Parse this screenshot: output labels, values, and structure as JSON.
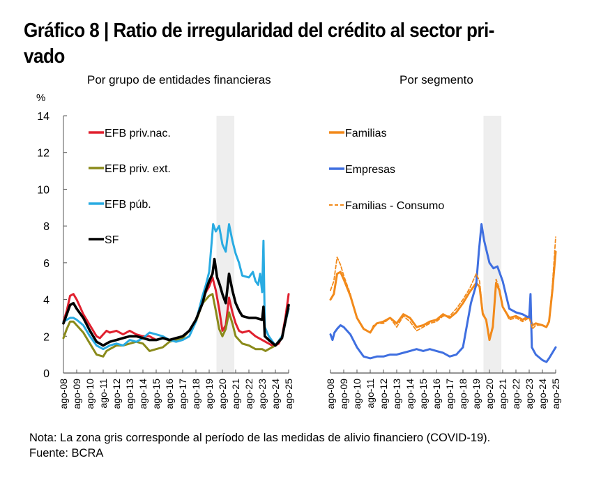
{
  "title": "Gráfico 8 | Ratio de irregularidad del crédito al sector pri-vado",
  "title_line1": "Gráfico 8 | Ratio de irregularidad del crédito al sector pri-",
  "title_line2": "vado",
  "note": "Nota: La zona gris corresponde al período de las medidas de alivio financiero (COVID-19).",
  "source": "Fuente: BCRA",
  "chart_data": [
    {
      "type": "line",
      "title": "Por grupo de entidades financieras",
      "ylabel": "%",
      "xlabel": "",
      "ylim": [
        0,
        14
      ],
      "yticks": [
        0,
        2,
        4,
        6,
        8,
        10,
        12,
        14
      ],
      "xticks": [
        "ago-08",
        "ago-09",
        "ago-10",
        "ago-11",
        "ago-12",
        "ago-13",
        "ago-14",
        "ago-15",
        "ago-16",
        "ago-17",
        "ago-18",
        "ago-19",
        "ago-20",
        "ago-21",
        "ago-22",
        "ago-23",
        "ago-24",
        "ago-25"
      ],
      "shaded_region": {
        "from": "mar-20",
        "to": "abr-21",
        "x_years": [
          11.55,
          12.9
        ],
        "label": "Medidas de alivio financiero (COVID-19)"
      },
      "legend": "top-left",
      "x_unit": "years since ago-08",
      "series": [
        {
          "name": "EFB priv.nac.",
          "color": "#e0202e",
          "dash": false,
          "x": [
            0,
            0.25,
            0.5,
            0.75,
            1,
            1.25,
            1.5,
            2,
            2.5,
            2.75,
            3,
            3.25,
            3.5,
            4,
            4.5,
            5,
            5.5,
            6,
            6.5,
            7,
            7.5,
            8,
            8.5,
            9,
            9.5,
            10,
            10.5,
            10.75,
            11,
            11.25,
            11.5,
            11.75,
            12,
            12.25,
            12.5,
            12.75,
            13,
            13.25,
            13.5,
            14,
            14.5,
            15,
            15.5,
            15.75,
            16,
            16.25,
            16.5,
            16.75,
            17
          ],
          "y": [
            2.8,
            3.4,
            4.2,
            4.3,
            4.0,
            3.6,
            3.2,
            2.6,
            2.0,
            1.9,
            2.1,
            2.3,
            2.2,
            2.3,
            2.1,
            2.3,
            2.1,
            2.0,
            2.0,
            1.8,
            1.9,
            1.8,
            1.9,
            1.9,
            2.3,
            2.8,
            3.9,
            4.4,
            4.7,
            5.2,
            4.5,
            3.5,
            2.3,
            2.6,
            4.1,
            3.3,
            2.7,
            2.3,
            2.2,
            2.3,
            2.0,
            1.8,
            1.6,
            1.5,
            1.5,
            1.6,
            2.0,
            3.0,
            4.3
          ]
        },
        {
          "name": "EFB priv. ext.",
          "color": "#8a8a1a",
          "dash": false,
          "x": [
            0,
            0.25,
            0.5,
            0.75,
            1,
            1.5,
            2,
            2.5,
            3,
            3.25,
            3.5,
            4,
            4.5,
            5,
            5.5,
            6,
            6.5,
            7,
            7.5,
            8,
            8.5,
            9,
            9.5,
            10,
            10.5,
            10.75,
            11,
            11.25,
            11.5,
            11.75,
            12,
            12.25,
            12.5,
            12.75,
            13,
            13.5,
            14,
            14.5,
            15,
            15.25,
            15.5,
            15.75,
            16,
            16.5,
            17
          ],
          "y": [
            1.9,
            2.4,
            2.8,
            2.8,
            2.6,
            2.2,
            1.6,
            1.0,
            0.9,
            1.2,
            1.3,
            1.5,
            1.5,
            1.6,
            1.7,
            1.6,
            1.2,
            1.3,
            1.4,
            1.7,
            1.8,
            1.9,
            2.3,
            2.8,
            3.8,
            4.0,
            4.2,
            4.3,
            3.4,
            2.4,
            2.0,
            2.4,
            3.3,
            2.7,
            2.0,
            1.6,
            1.5,
            1.3,
            1.3,
            1.2,
            1.3,
            1.4,
            1.5,
            2.0,
            3.5
          ]
        },
        {
          "name": "EFB púb.",
          "color": "#29abe2",
          "dash": false,
          "x": [
            0,
            0.25,
            0.5,
            0.75,
            1,
            1.5,
            2,
            2.5,
            3,
            3.25,
            3.5,
            4,
            4.5,
            5,
            5.5,
            6,
            6.5,
            7,
            7.5,
            8,
            8.5,
            9,
            9.5,
            10,
            10.5,
            10.75,
            11,
            11.15,
            11.3,
            11.5,
            11.75,
            12,
            12.25,
            12.5,
            12.75,
            13,
            13.25,
            13.5,
            14,
            14.3,
            14.5,
            14.7,
            14.85,
            15,
            15.1,
            15.2,
            15.5,
            16,
            16.5,
            17
          ],
          "y": [
            2.8,
            2.9,
            3.0,
            3.0,
            2.9,
            2.6,
            2.0,
            1.5,
            1.3,
            1.4,
            1.5,
            1.6,
            1.5,
            1.8,
            1.7,
            1.9,
            2.2,
            2.1,
            2.0,
            1.8,
            1.7,
            1.8,
            2.0,
            2.8,
            4.2,
            4.8,
            5.5,
            6.8,
            8.1,
            7.7,
            8.0,
            7.0,
            6.6,
            8.1,
            7.2,
            6.5,
            6.0,
            5.3,
            5.2,
            5.5,
            5.0,
            4.8,
            5.4,
            4.4,
            7.2,
            2.5,
            2.0,
            1.5,
            2.0,
            3.5
          ]
        },
        {
          "name": "SF",
          "color": "#000000",
          "dash": false,
          "x": [
            0,
            0.25,
            0.5,
            0.75,
            1,
            1.5,
            2,
            2.5,
            3,
            3.25,
            3.5,
            4,
            4.5,
            5,
            5.5,
            6,
            6.5,
            7,
            7.5,
            8,
            8.5,
            9,
            9.5,
            10,
            10.5,
            10.75,
            11,
            11.25,
            11.4,
            11.6,
            11.8,
            12,
            12.25,
            12.5,
            12.75,
            13,
            13.25,
            13.5,
            14,
            14.5,
            15,
            15.1,
            15.2,
            15.5,
            16,
            16.5,
            17
          ],
          "y": [
            2.7,
            3.2,
            3.7,
            3.8,
            3.5,
            3.0,
            2.3,
            1.7,
            1.5,
            1.6,
            1.7,
            1.8,
            1.9,
            2.0,
            2.0,
            1.9,
            1.8,
            1.8,
            1.9,
            1.8,
            1.9,
            2.0,
            2.3,
            2.9,
            3.8,
            4.5,
            5.0,
            5.4,
            6.2,
            5.2,
            4.8,
            4.3,
            3.8,
            5.4,
            4.5,
            3.8,
            3.4,
            3.1,
            3.0,
            3.0,
            2.9,
            3.6,
            2.0,
            1.8,
            1.5,
            1.9,
            3.7
          ]
        }
      ]
    },
    {
      "type": "line",
      "title": "Por segmento",
      "ylabel": "%",
      "xlabel": "",
      "ylim": [
        0,
        14
      ],
      "xticks": [
        "ago-08",
        "ago-09",
        "ago-10",
        "ago-11",
        "ago-12",
        "ago-13",
        "ago-14",
        "ago-15",
        "ago-16",
        "ago-17",
        "ago-18",
        "ago-19",
        "ago-20",
        "ago-21",
        "ago-22",
        "ago-23",
        "ago-24",
        "ago-25"
      ],
      "shaded_region": {
        "from": "mar-20",
        "to": "abr-21",
        "x_years": [
          11.55,
          12.9
        ],
        "label": "Medidas de alivio financiero (COVID-19)"
      },
      "legend": "top-left",
      "x_unit": "years since ago-08",
      "series": [
        {
          "name": "Familias",
          "color": "#f28a1b",
          "dash": false,
          "x": [
            0,
            0.25,
            0.5,
            0.75,
            1,
            1.5,
            2,
            2.5,
            3,
            3.25,
            3.5,
            4,
            4.5,
            5,
            5.5,
            6,
            6.5,
            7,
            7.5,
            8,
            8.5,
            9,
            9.5,
            10,
            10.5,
            11,
            11.25,
            11.5,
            11.75,
            12,
            12.25,
            12.5,
            12.75,
            13,
            13.5,
            14,
            14.5,
            15,
            15.25,
            15.5,
            16,
            16.3,
            16.5,
            16.75,
            17
          ],
          "y": [
            4.0,
            4.3,
            5.4,
            5.5,
            5.1,
            4.2,
            3.0,
            2.4,
            2.2,
            2.5,
            2.7,
            2.8,
            3.0,
            2.7,
            3.2,
            3.0,
            2.5,
            2.6,
            2.8,
            2.9,
            3.2,
            3.0,
            3.3,
            3.8,
            4.4,
            4.9,
            4.7,
            3.2,
            2.9,
            1.8,
            2.5,
            4.9,
            4.5,
            3.6,
            3.0,
            3.1,
            2.9,
            3.1,
            2.6,
            2.7,
            2.6,
            2.5,
            2.8,
            4.5,
            6.6
          ]
        },
        {
          "name": "Empresas",
          "color": "#3f6fe0",
          "dash": false,
          "x": [
            0,
            0.15,
            0.3,
            0.5,
            0.75,
            1,
            1.5,
            2,
            2.5,
            3,
            3.5,
            4,
            4.5,
            5,
            5.5,
            6,
            6.5,
            7,
            7.5,
            8,
            8.5,
            9,
            9.5,
            10,
            10.3,
            10.6,
            11,
            11.2,
            11.4,
            11.6,
            11.8,
            12,
            12.3,
            12.6,
            13,
            13.5,
            14,
            14.5,
            15,
            15.1,
            15.2,
            15.5,
            16,
            16.3,
            16.5,
            17
          ],
          "y": [
            2.1,
            1.8,
            2.2,
            2.4,
            2.6,
            2.5,
            2.1,
            1.4,
            0.9,
            0.8,
            0.9,
            0.9,
            1.0,
            1.0,
            1.1,
            1.2,
            1.3,
            1.2,
            1.3,
            1.2,
            1.1,
            0.9,
            1.0,
            1.4,
            2.6,
            3.8,
            4.8,
            6.6,
            8.1,
            7.2,
            6.6,
            6.0,
            5.7,
            5.8,
            5.0,
            3.5,
            3.3,
            3.2,
            3.0,
            4.3,
            1.4,
            1.0,
            0.7,
            0.6,
            0.8,
            1.4
          ]
        },
        {
          "name": "Familias - Consumo",
          "color": "#f28a1b",
          "dash": true,
          "x": [
            0,
            0.25,
            0.5,
            0.75,
            1,
            1.5,
            2,
            2.5,
            3,
            3.25,
            3.5,
            4,
            4.5,
            5,
            5.5,
            6,
            6.5,
            7,
            7.5,
            8,
            8.5,
            9,
            9.5,
            10,
            10.5,
            11,
            11.25,
            11.5,
            11.75,
            12,
            12.25,
            12.5,
            12.75,
            13,
            13.5,
            14,
            14.5,
            15,
            15.25,
            15.5,
            16,
            16.3,
            16.5,
            16.75,
            17
          ],
          "y": [
            4.5,
            5.0,
            6.3,
            5.9,
            5.3,
            4.3,
            3.0,
            2.4,
            2.2,
            2.6,
            2.7,
            2.7,
            3.0,
            2.5,
            3.1,
            2.8,
            2.3,
            2.5,
            2.7,
            2.8,
            3.1,
            3.1,
            3.5,
            4.0,
            4.6,
            5.4,
            5.0,
            3.3,
            2.9,
            1.9,
            2.6,
            5.1,
            4.6,
            3.6,
            2.9,
            3.0,
            2.8,
            3.0,
            2.4,
            2.6,
            2.6,
            2.5,
            2.8,
            4.8,
            7.4
          ]
        }
      ]
    }
  ]
}
